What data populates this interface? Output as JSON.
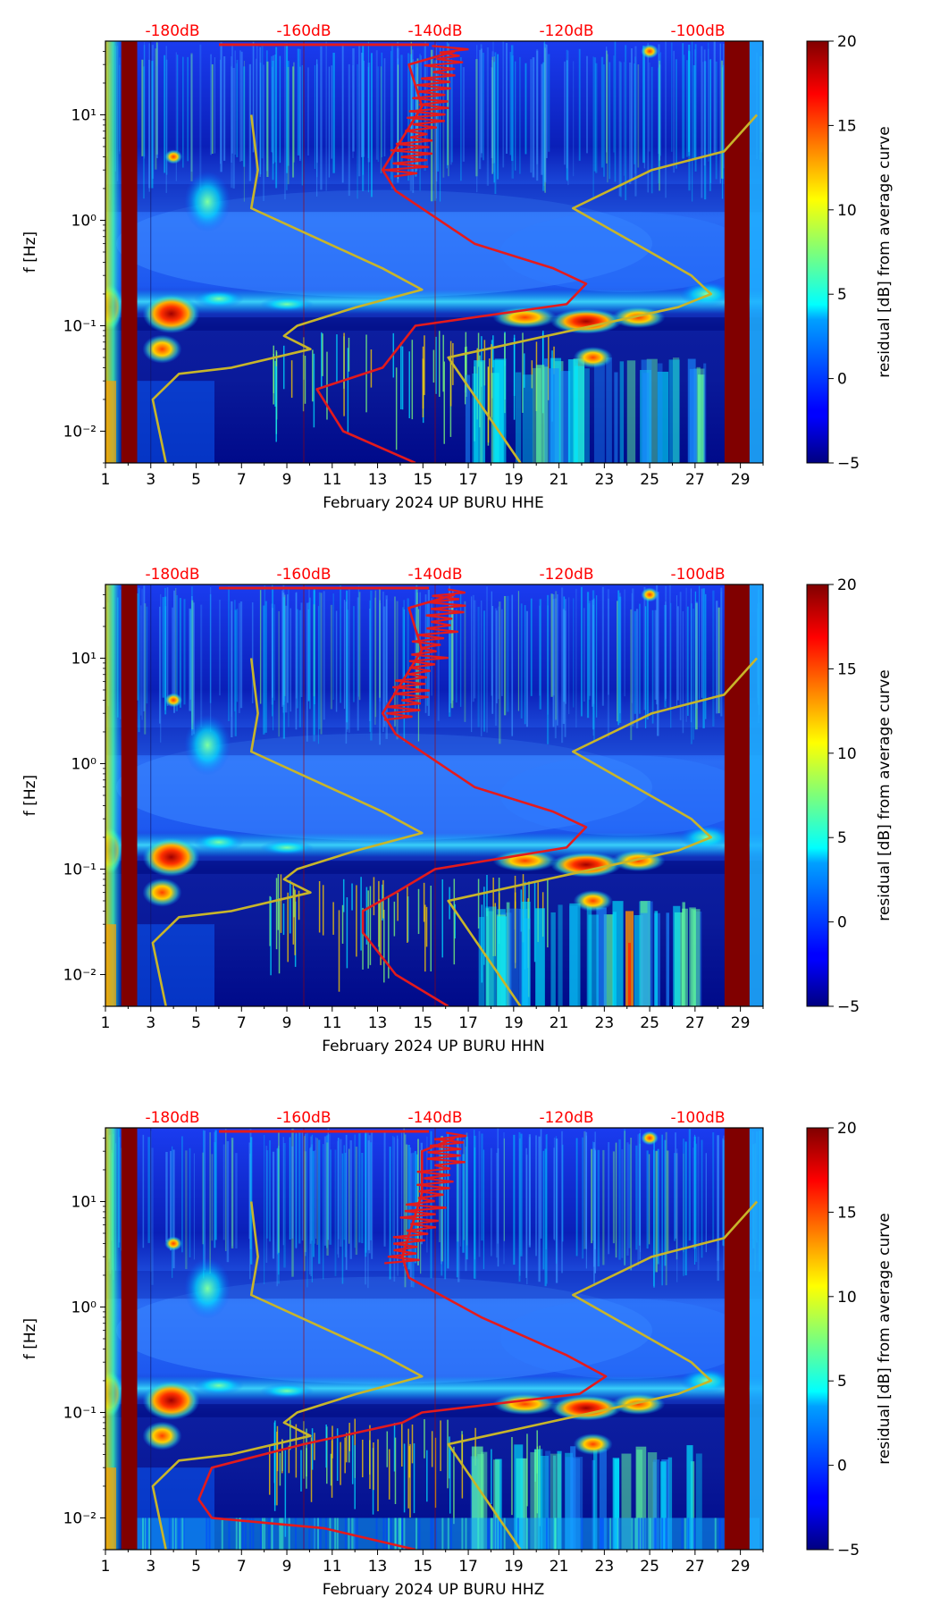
{
  "colors": {
    "red_curve": "#e41a1c",
    "yellow_curve": "#c8b52a",
    "db_label": "#ff0000",
    "dark_red": "#800000",
    "frame": "#000000"
  },
  "colorbar": {
    "label": "residual [dB] from average curve",
    "vmin": -5,
    "vmax": 20,
    "ticks": [
      "20",
      "15",
      "10",
      "5",
      "0",
      "−5"
    ],
    "tick_values": [
      20,
      15,
      10,
      5,
      0,
      -5
    ]
  },
  "chart_data": [
    {
      "type": "heatmap",
      "title": "",
      "xlabel": "February 2024 UP BURU  HHE",
      "ylabel": "f [Hz]",
      "xlim": [
        1,
        30
      ],
      "ylim_hz": [
        0.005,
        50
      ],
      "x_ticks": [
        "1",
        "3",
        "5",
        "7",
        "9",
        "11",
        "13",
        "15",
        "17",
        "19",
        "21",
        "23",
        "25",
        "27",
        "29"
      ],
      "y_ticks": [
        "10¹",
        "10⁰",
        "10⁻¹",
        "10⁻²"
      ],
      "top_axis": {
        "labels": [
          "-180dB",
          "-160dB",
          "-140dB",
          "-120dB",
          "-100dB"
        ],
        "values": [
          -180,
          -160,
          -140,
          -120,
          -100
        ]
      },
      "data_gaps_days": [
        [
          1.7,
          2.4
        ],
        [
          28.3,
          29.4
        ]
      ],
      "series": [
        {
          "name": "average PSD curve (red)",
          "points_db_hz": [
            [
              -137,
              40
            ],
            [
              -144,
              30
            ],
            [
              -142,
              12
            ],
            [
              -148,
              3
            ],
            [
              -146,
              1.9
            ],
            [
              -134,
              0.6
            ],
            [
              -122,
              0.35
            ],
            [
              -117,
              0.25
            ],
            [
              -120,
              0.16
            ],
            [
              -143,
              0.1
            ],
            [
              -148,
              0.04
            ],
            [
              -158,
              0.025
            ],
            [
              -154,
              0.01
            ],
            [
              -143,
              0.005
            ]
          ]
        },
        {
          "name": "noise model bounds (yellow)",
          "points_db_hz": [
            [
              -168,
              10
            ],
            [
              -167,
              3
            ],
            [
              -168,
              1.3
            ],
            [
              -148,
              0.35
            ],
            [
              -142,
              0.22
            ],
            [
              -152,
              0.15
            ],
            [
              -161,
              0.1
            ],
            [
              -163,
              0.08
            ],
            [
              -159,
              0.06
            ],
            [
              -171,
              0.04
            ],
            [
              -179,
              0.035
            ],
            [
              -183,
              0.02
            ],
            [
              -182,
              0.01
            ],
            [
              -181,
              0.005
            ]
          ]
        },
        {
          "name": "noise model bounds (yellow, high)",
          "points_db_hz": [
            [
              -91,
              10
            ],
            [
              -96,
              4.5
            ],
            [
              -107,
              3
            ],
            [
              -119,
              1.3
            ],
            [
              -101,
              0.3
            ],
            [
              -98,
              0.2
            ],
            [
              -103,
              0.15
            ],
            [
              -123,
              0.08
            ],
            [
              -138,
              0.05
            ],
            [
              -127,
              0.005
            ]
          ]
        }
      ]
    },
    {
      "type": "heatmap",
      "title": "",
      "xlabel": "February 2024 UP BURU  HHN",
      "ylabel": "f [Hz]",
      "xlim": [
        1,
        30
      ],
      "ylim_hz": [
        0.005,
        50
      ],
      "x_ticks": [
        "1",
        "3",
        "5",
        "7",
        "9",
        "11",
        "13",
        "15",
        "17",
        "19",
        "21",
        "23",
        "25",
        "27",
        "29"
      ],
      "y_ticks": [
        "10¹",
        "10⁰",
        "10⁻¹",
        "10⁻²"
      ],
      "top_axis": {
        "labels": [
          "-180dB",
          "-160dB",
          "-140dB",
          "-120dB",
          "-100dB"
        ],
        "values": [
          -180,
          -160,
          -140,
          -120,
          -100
        ]
      },
      "data_gaps_days": [
        [
          1.7,
          2.4
        ],
        [
          28.3,
          29.4
        ]
      ],
      "series": [
        {
          "name": "average PSD curve (red)",
          "points_db_hz": [
            [
              -137,
              40
            ],
            [
              -144,
              30
            ],
            [
              -142,
              12
            ],
            [
              -148,
              3
            ],
            [
              -146,
              1.9
            ],
            [
              -134,
              0.6
            ],
            [
              -122,
              0.35
            ],
            [
              -117,
              0.25
            ],
            [
              -120,
              0.16
            ],
            [
              -140,
              0.1
            ],
            [
              -146,
              0.06
            ],
            [
              -151,
              0.04
            ],
            [
              -151,
              0.025
            ],
            [
              -146,
              0.01
            ],
            [
              -138,
              0.005
            ]
          ]
        },
        {
          "name": "noise model bounds (yellow)",
          "points_db_hz": [
            [
              -168,
              10
            ],
            [
              -167,
              3
            ],
            [
              -168,
              1.3
            ],
            [
              -148,
              0.35
            ],
            [
              -142,
              0.22
            ],
            [
              -152,
              0.15
            ],
            [
              -161,
              0.1
            ],
            [
              -163,
              0.08
            ],
            [
              -159,
              0.06
            ],
            [
              -171,
              0.04
            ],
            [
              -179,
              0.035
            ],
            [
              -183,
              0.02
            ],
            [
              -182,
              0.01
            ],
            [
              -181,
              0.005
            ]
          ]
        },
        {
          "name": "noise model bounds (yellow, high)",
          "points_db_hz": [
            [
              -91,
              10
            ],
            [
              -96,
              4.5
            ],
            [
              -107,
              3
            ],
            [
              -119,
              1.3
            ],
            [
              -101,
              0.3
            ],
            [
              -98,
              0.2
            ],
            [
              -103,
              0.15
            ],
            [
              -123,
              0.08
            ],
            [
              -138,
              0.05
            ],
            [
              -127,
              0.005
            ]
          ]
        }
      ]
    },
    {
      "type": "heatmap",
      "title": "",
      "xlabel": "February 2024 UP BURU  HHZ",
      "ylabel": "f [Hz]",
      "xlim": [
        1,
        30
      ],
      "ylim_hz": [
        0.005,
        50
      ],
      "x_ticks": [
        "1",
        "3",
        "5",
        "7",
        "9",
        "11",
        "13",
        "15",
        "17",
        "19",
        "21",
        "23",
        "25",
        "27",
        "29"
      ],
      "y_ticks": [
        "10¹",
        "10⁰",
        "10⁻¹",
        "10⁻²"
      ],
      "top_axis": {
        "labels": [
          "-180dB",
          "-160dB",
          "-140dB",
          "-120dB",
          "-100dB"
        ],
        "values": [
          -180,
          -160,
          -140,
          -120,
          -100
        ]
      },
      "data_gaps_days": [
        [
          1.7,
          2.4
        ],
        [
          28.3,
          29.4
        ]
      ],
      "series": [
        {
          "name": "average PSD curve (red)",
          "points_db_hz": [
            [
              -137,
              40
            ],
            [
              -142,
              30
            ],
            [
              -142,
              12
            ],
            [
              -145,
              3
            ],
            [
              -144,
              1.9
            ],
            [
              -133,
              0.8
            ],
            [
              -120,
              0.35
            ],
            [
              -114,
              0.22
            ],
            [
              -118,
              0.15
            ],
            [
              -142,
              0.1
            ],
            [
              -145,
              0.08
            ],
            [
              -160,
              0.05
            ],
            [
              -174,
              0.03
            ],
            [
              -176,
              0.015
            ],
            [
              -174,
              0.01
            ],
            [
              -157,
              0.008
            ],
            [
              -143,
              0.005
            ]
          ]
        },
        {
          "name": "noise model bounds (yellow)",
          "points_db_hz": [
            [
              -168,
              10
            ],
            [
              -167,
              3
            ],
            [
              -168,
              1.3
            ],
            [
              -148,
              0.35
            ],
            [
              -142,
              0.22
            ],
            [
              -152,
              0.15
            ],
            [
              -161,
              0.1
            ],
            [
              -163,
              0.08
            ],
            [
              -159,
              0.06
            ],
            [
              -171,
              0.04
            ],
            [
              -179,
              0.035
            ],
            [
              -183,
              0.02
            ],
            [
              -182,
              0.01
            ],
            [
              -181,
              0.005
            ]
          ]
        },
        {
          "name": "noise model bounds (yellow, high)",
          "points_db_hz": [
            [
              -91,
              10
            ],
            [
              -96,
              4.5
            ],
            [
              -107,
              3
            ],
            [
              -119,
              1.3
            ],
            [
              -101,
              0.3
            ],
            [
              -98,
              0.2
            ],
            [
              -103,
              0.15
            ],
            [
              -123,
              0.08
            ],
            [
              -138,
              0.05
            ],
            [
              -127,
              0.005
            ]
          ]
        }
      ]
    }
  ]
}
